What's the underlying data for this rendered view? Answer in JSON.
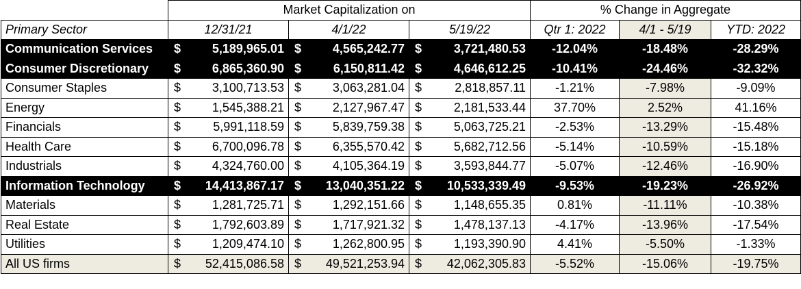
{
  "header": {
    "group_market_cap": "Market Capitalization on",
    "group_pct_change": "% Change in Aggregate",
    "col_sector": "Primary Sector",
    "col_d1": "12/31/21",
    "col_d2": "4/1/22",
    "col_d3": "5/19/22",
    "col_q1": "Qtr 1: 2022",
    "col_period": "4/1 - 5/19",
    "col_ytd": "YTD: 2022"
  },
  "currency_symbol": "$",
  "rows": [
    {
      "sector": "Communication Services",
      "mc1": "5,189,965.01",
      "mc2": "4,565,242.77",
      "mc3": "3,721,480.53",
      "q1": "-12.04%",
      "period": "-18.48%",
      "ytd": "-28.29%",
      "highlight": true
    },
    {
      "sector": "Consumer Discretionary",
      "mc1": "6,865,360.90",
      "mc2": "6,150,811.42",
      "mc3": "4,646,612.25",
      "q1": "-10.41%",
      "period": "-24.46%",
      "ytd": "-32.32%",
      "highlight": true
    },
    {
      "sector": "Consumer Staples",
      "mc1": "3,100,713.53",
      "mc2": "3,063,281.04",
      "mc3": "2,818,857.11",
      "q1": "-1.21%",
      "period": "-7.98%",
      "ytd": "-9.09%",
      "highlight": false
    },
    {
      "sector": "Energy",
      "mc1": "1,545,388.21",
      "mc2": "2,127,967.47",
      "mc3": "2,181,533.44",
      "q1": "37.70%",
      "period": "2.52%",
      "ytd": "41.16%",
      "highlight": false
    },
    {
      "sector": "Financials",
      "mc1": "5,991,118.59",
      "mc2": "5,839,759.38",
      "mc3": "5,063,725.21",
      "q1": "-2.53%",
      "period": "-13.29%",
      "ytd": "-15.48%",
      "highlight": false
    },
    {
      "sector": "Health Care",
      "mc1": "6,700,096.78",
      "mc2": "6,355,570.42",
      "mc3": "5,682,712.56",
      "q1": "-5.14%",
      "period": "-10.59%",
      "ytd": "-15.18%",
      "highlight": false
    },
    {
      "sector": "Industrials",
      "mc1": "4,324,760.00",
      "mc2": "4,105,364.19",
      "mc3": "3,593,844.77",
      "q1": "-5.07%",
      "period": "-12.46%",
      "ytd": "-16.90%",
      "highlight": false
    },
    {
      "sector": "Information Technology",
      "mc1": "14,413,867.17",
      "mc2": "13,040,351.22",
      "mc3": "10,533,339.49",
      "q1": "-9.53%",
      "period": "-19.23%",
      "ytd": "-26.92%",
      "highlight": true
    },
    {
      "sector": "Materials",
      "mc1": "1,281,725.71",
      "mc2": "1,292,151.66",
      "mc3": "1,148,655.35",
      "q1": "0.81%",
      "period": "-11.11%",
      "ytd": "-10.38%",
      "highlight": false
    },
    {
      "sector": "Real Estate",
      "mc1": "1,792,603.89",
      "mc2": "1,717,921.32",
      "mc3": "1,478,137.13",
      "q1": "-4.17%",
      "period": "-13.96%",
      "ytd": "-17.54%",
      "highlight": false
    },
    {
      "sector": "Utilities",
      "mc1": "1,209,474.10",
      "mc2": "1,262,800.95",
      "mc3": "1,193,390.90",
      "q1": "4.41%",
      "period": "-5.50%",
      "ytd": "-1.33%",
      "highlight": false
    },
    {
      "sector": "All US firms",
      "mc1": "52,415,086.58",
      "mc2": "49,521,253.94",
      "mc3": "42,062,305.83",
      "q1": "-5.52%",
      "period": "-15.06%",
      "ytd": "-19.75%",
      "highlight": false,
      "total": true
    }
  ]
}
